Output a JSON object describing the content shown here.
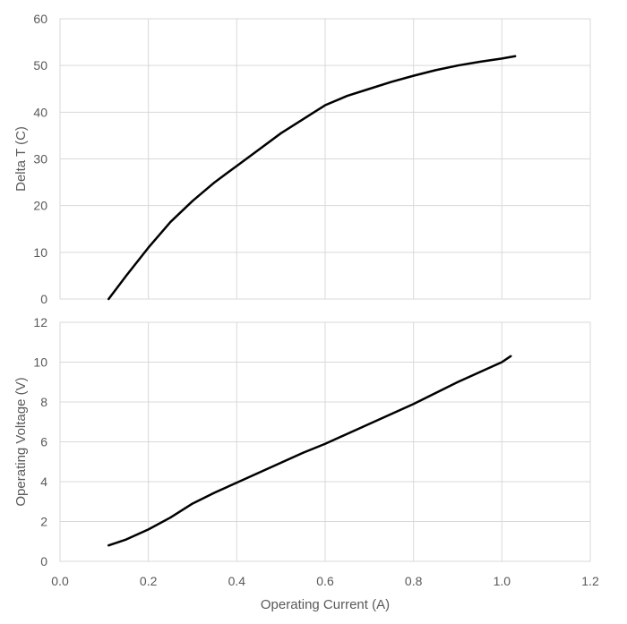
{
  "chart_data": [
    {
      "type": "line",
      "title": "",
      "xlabel": "",
      "ylabel": "Delta T (C)",
      "xlim": [
        0,
        1.2
      ],
      "ylim": [
        0,
        60
      ],
      "x_ticks": [
        "0.0",
        "0.2",
        "0.4",
        "0.6",
        "0.8",
        "1.0",
        "1.2"
      ],
      "y_ticks": [
        "0",
        "10",
        "20",
        "30",
        "40",
        "50",
        "60"
      ],
      "grid": true,
      "show_x_tick_labels": false,
      "series": [
        {
          "color": "#000000",
          "x": [
            0.11,
            0.15,
            0.2,
            0.25,
            0.3,
            0.35,
            0.4,
            0.45,
            0.5,
            0.55,
            0.6,
            0.65,
            0.7,
            0.75,
            0.8,
            0.85,
            0.9,
            0.95,
            1.0,
            1.03
          ],
          "y": [
            0,
            5,
            11,
            16.5,
            21,
            25,
            28.5,
            32,
            35.5,
            38.5,
            41.5,
            43.5,
            45,
            46.5,
            47.8,
            49,
            50,
            50.8,
            51.5,
            52
          ]
        }
      ]
    },
    {
      "type": "line",
      "title": "",
      "xlabel": "Operating Current (A)",
      "ylabel": "Operating Voltage (V)",
      "xlim": [
        0,
        1.2
      ],
      "ylim": [
        0,
        12
      ],
      "x_ticks": [
        "0.0",
        "0.2",
        "0.4",
        "0.6",
        "0.8",
        "1.0",
        "1.2"
      ],
      "y_ticks": [
        "0",
        "2",
        "4",
        "6",
        "8",
        "10",
        "12"
      ],
      "grid": true,
      "show_x_tick_labels": true,
      "series": [
        {
          "color": "#000000",
          "x": [
            0.11,
            0.15,
            0.2,
            0.25,
            0.3,
            0.35,
            0.4,
            0.45,
            0.5,
            0.55,
            0.6,
            0.65,
            0.7,
            0.75,
            0.8,
            0.85,
            0.9,
            0.95,
            1.0,
            1.02
          ],
          "y": [
            0.8,
            1.1,
            1.6,
            2.2,
            2.9,
            3.45,
            3.95,
            4.45,
            4.95,
            5.45,
            5.9,
            6.4,
            6.9,
            7.4,
            7.9,
            8.45,
            9.0,
            9.5,
            10.0,
            10.3
          ]
        }
      ]
    }
  ]
}
